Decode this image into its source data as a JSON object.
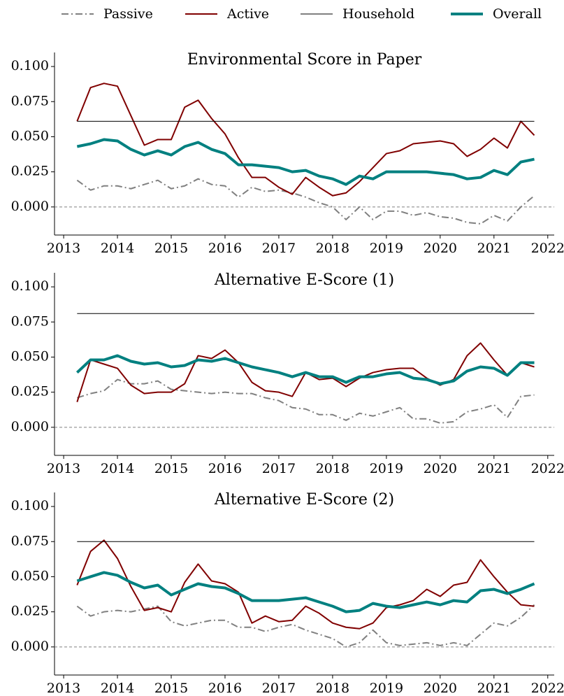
{
  "legend": [
    {
      "name": "Passive",
      "color": "#808080",
      "dash": "dashdot",
      "width": 2
    },
    {
      "name": "Active",
      "color": "#800000",
      "dash": "solid",
      "width": 2
    },
    {
      "name": "Household",
      "color": "#000000",
      "dash": "solid",
      "width": 1
    },
    {
      "name": "Overall",
      "color": "#008080",
      "dash": "solid",
      "width": 4
    }
  ],
  "chart_data": [
    {
      "type": "line",
      "title": "Environmental Score in Paper",
      "x": [
        2013.25,
        2013.5,
        2013.75,
        2014,
        2014.25,
        2014.5,
        2014.75,
        2015,
        2015.25,
        2015.5,
        2015.75,
        2016,
        2016.25,
        2016.5,
        2016.75,
        2017,
        2017.25,
        2017.5,
        2017.75,
        2018,
        2018.25,
        2018.5,
        2018.75,
        2019,
        2019.25,
        2019.5,
        2019.75,
        2020,
        2020.25,
        2020.5,
        2020.75,
        2021,
        2021.25,
        2021.5,
        2021.75
      ],
      "series": [
        {
          "values": [
            0.019,
            0.012,
            0.015,
            0.015,
            0.013,
            0.016,
            0.019,
            0.013,
            0.015,
            0.02,
            0.016,
            0.015,
            0.007,
            0.014,
            0.011,
            0.012,
            0.01,
            0.007,
            0.003,
            0.0,
            -0.009,
            0.0,
            -0.009,
            -0.003,
            -0.003,
            -0.006,
            -0.004,
            -0.007,
            -0.008,
            -0.011,
            -0.012,
            -0.006,
            -0.01,
            0.0,
            0.008
          ]
        },
        {
          "values": [
            0.061,
            0.085,
            0.088,
            0.086,
            0.065,
            0.044,
            0.048,
            0.048,
            0.071,
            0.076,
            0.063,
            0.052,
            0.035,
            0.021,
            0.021,
            0.014,
            0.009,
            0.021,
            0.014,
            0.008,
            0.01,
            0.018,
            0.028,
            0.038,
            0.04,
            0.045,
            0.046,
            0.047,
            0.045,
            0.036,
            0.041,
            0.049,
            0.042,
            0.061,
            0.051
          ]
        },
        {
          "values": [
            0.061,
            0.061,
            0.061,
            0.061,
            0.061,
            0.061,
            0.061,
            0.061,
            0.061,
            0.061,
            0.061,
            0.061,
            0.061,
            0.061,
            0.061,
            0.061,
            0.061,
            0.061,
            0.061,
            0.061,
            0.061,
            0.061,
            0.061,
            0.061,
            0.061,
            0.061,
            0.061,
            0.061,
            0.061,
            0.061,
            0.061,
            0.061,
            0.061,
            0.061,
            0.061
          ]
        },
        {
          "values": [
            0.043,
            0.045,
            0.048,
            0.047,
            0.041,
            0.037,
            0.04,
            0.037,
            0.043,
            0.046,
            0.041,
            0.038,
            0.03,
            0.03,
            0.029,
            0.028,
            0.025,
            0.026,
            0.022,
            0.02,
            0.016,
            0.022,
            0.02,
            0.025,
            0.025,
            0.025,
            0.025,
            0.024,
            0.023,
            0.02,
            0.021,
            0.026,
            0.023,
            0.032,
            0.034
          ]
        }
      ],
      "xlim": [
        2012.83,
        2022.12
      ],
      "xticks": [
        2013,
        2014,
        2015,
        2016,
        2017,
        2018,
        2019,
        2020,
        2021,
        2022
      ],
      "ylim": [
        -0.02,
        0.11
      ],
      "yticks": [
        {
          "value": 0,
          "label": "0.000"
        },
        {
          "value": 0.025,
          "label": "0.025"
        },
        {
          "value": 0.05,
          "label": "0.050"
        },
        {
          "value": 0.075,
          "label": "0.075"
        },
        {
          "value": 0.1,
          "label": "0.100"
        }
      ],
      "zero_line": true
    },
    {
      "type": "line",
      "title": "Alternative E-Score (1)",
      "x": [
        2013.25,
        2013.5,
        2013.75,
        2014,
        2014.25,
        2014.5,
        2014.75,
        2015,
        2015.25,
        2015.5,
        2015.75,
        2016,
        2016.25,
        2016.5,
        2016.75,
        2017,
        2017.25,
        2017.5,
        2017.75,
        2018,
        2018.25,
        2018.5,
        2018.75,
        2019,
        2019.25,
        2019.5,
        2019.75,
        2020,
        2020.25,
        2020.5,
        2020.75,
        2021,
        2021.25,
        2021.5,
        2021.75
      ],
      "series": [
        {
          "values": [
            0.021,
            0.024,
            0.026,
            0.034,
            0.031,
            0.031,
            0.033,
            0.027,
            0.026,
            0.025,
            0.024,
            0.025,
            0.024,
            0.024,
            0.021,
            0.019,
            0.014,
            0.013,
            0.009,
            0.009,
            0.005,
            0.01,
            0.008,
            0.011,
            0.014,
            0.006,
            0.006,
            0.003,
            0.004,
            0.011,
            0.013,
            0.016,
            0.007,
            0.022,
            0.023
          ]
        },
        {
          "values": [
            0.018,
            0.048,
            0.045,
            0.042,
            0.03,
            0.024,
            0.025,
            0.025,
            0.031,
            0.051,
            0.049,
            0.055,
            0.046,
            0.032,
            0.026,
            0.025,
            0.022,
            0.039,
            0.034,
            0.035,
            0.029,
            0.035,
            0.039,
            0.041,
            0.042,
            0.042,
            0.035,
            0.03,
            0.034,
            0.051,
            0.06,
            0.048,
            0.037,
            0.046,
            0.043
          ]
        },
        {
          "values": [
            0.081,
            0.081,
            0.081,
            0.081,
            0.081,
            0.081,
            0.081,
            0.081,
            0.081,
            0.081,
            0.081,
            0.081,
            0.081,
            0.081,
            0.081,
            0.081,
            0.081,
            0.081,
            0.081,
            0.081,
            0.081,
            0.081,
            0.081,
            0.081,
            0.081,
            0.081,
            0.081,
            0.081,
            0.081,
            0.081,
            0.081,
            0.081,
            0.081,
            0.081,
            0.081
          ]
        },
        {
          "values": [
            0.039,
            0.048,
            0.048,
            0.051,
            0.047,
            0.045,
            0.046,
            0.043,
            0.044,
            0.048,
            0.047,
            0.049,
            0.046,
            0.043,
            0.041,
            0.039,
            0.036,
            0.039,
            0.036,
            0.036,
            0.032,
            0.036,
            0.036,
            0.038,
            0.039,
            0.035,
            0.034,
            0.031,
            0.033,
            0.04,
            0.043,
            0.042,
            0.037,
            0.046,
            0.046
          ]
        }
      ],
      "xlim": [
        2012.83,
        2022.12
      ],
      "xticks": [
        2013,
        2014,
        2015,
        2016,
        2017,
        2018,
        2019,
        2020,
        2021,
        2022
      ],
      "ylim": [
        -0.02,
        0.11
      ],
      "yticks": [
        {
          "value": 0,
          "label": "0.000"
        },
        {
          "value": 0.025,
          "label": "0.025"
        },
        {
          "value": 0.05,
          "label": "0.050"
        },
        {
          "value": 0.075,
          "label": "0.075"
        },
        {
          "value": 0.1,
          "label": "0.100"
        }
      ],
      "zero_line": true
    },
    {
      "type": "line",
      "title": "Alternative E-Score (2)",
      "x": [
        2013.25,
        2013.5,
        2013.75,
        2014,
        2014.25,
        2014.5,
        2014.75,
        2015,
        2015.25,
        2015.5,
        2015.75,
        2016,
        2016.25,
        2016.5,
        2016.75,
        2017,
        2017.25,
        2017.5,
        2017.75,
        2018,
        2018.25,
        2018.5,
        2018.75,
        2019,
        2019.25,
        2019.5,
        2019.75,
        2020,
        2020.25,
        2020.5,
        2020.75,
        2021,
        2021.25,
        2021.5,
        2021.75
      ],
      "series": [
        {
          "values": [
            0.029,
            0.022,
            0.025,
            0.026,
            0.025,
            0.027,
            0.029,
            0.018,
            0.015,
            0.017,
            0.019,
            0.019,
            0.014,
            0.014,
            0.011,
            0.014,
            0.016,
            0.012,
            0.009,
            0.006,
            0.0,
            0.003,
            0.012,
            0.003,
            0.001,
            0.002,
            0.003,
            0.001,
            0.003,
            0.001,
            0.009,
            0.017,
            0.015,
            0.021,
            0.03
          ]
        },
        {
          "values": [
            0.044,
            0.068,
            0.076,
            0.063,
            0.043,
            0.026,
            0.028,
            0.025,
            0.046,
            0.059,
            0.047,
            0.045,
            0.039,
            0.017,
            0.022,
            0.018,
            0.019,
            0.029,
            0.024,
            0.017,
            0.014,
            0.013,
            0.017,
            0.028,
            0.03,
            0.033,
            0.041,
            0.036,
            0.044,
            0.046,
            0.062,
            0.05,
            0.039,
            0.03,
            0.029
          ]
        },
        {
          "values": [
            0.075,
            0.075,
            0.075,
            0.075,
            0.075,
            0.075,
            0.075,
            0.075,
            0.075,
            0.075,
            0.075,
            0.075,
            0.075,
            0.075,
            0.075,
            0.075,
            0.075,
            0.075,
            0.075,
            0.075,
            0.075,
            0.075,
            0.075,
            0.075,
            0.075,
            0.075,
            0.075,
            0.075,
            0.075,
            0.075,
            0.075,
            0.075,
            0.075,
            0.075,
            0.075
          ]
        },
        {
          "values": [
            0.047,
            0.05,
            0.053,
            0.051,
            0.046,
            0.042,
            0.044,
            0.037,
            0.041,
            0.045,
            0.043,
            0.042,
            0.038,
            0.033,
            0.033,
            0.033,
            0.034,
            0.035,
            0.032,
            0.029,
            0.025,
            0.026,
            0.031,
            0.029,
            0.028,
            0.03,
            0.032,
            0.03,
            0.033,
            0.032,
            0.04,
            0.041,
            0.038,
            0.041,
            0.045
          ]
        }
      ],
      "xlim": [
        2012.83,
        2022.12
      ],
      "xticks": [
        2013,
        2014,
        2015,
        2016,
        2017,
        2018,
        2019,
        2020,
        2021,
        2022
      ],
      "ylim": [
        -0.02,
        0.11
      ],
      "yticks": [
        {
          "value": 0,
          "label": "0.000"
        },
        {
          "value": 0.025,
          "label": "0.025"
        },
        {
          "value": 0.05,
          "label": "0.050"
        },
        {
          "value": 0.075,
          "label": "0.075"
        },
        {
          "value": 0.1,
          "label": "0.100"
        }
      ],
      "zero_line": true
    }
  ]
}
